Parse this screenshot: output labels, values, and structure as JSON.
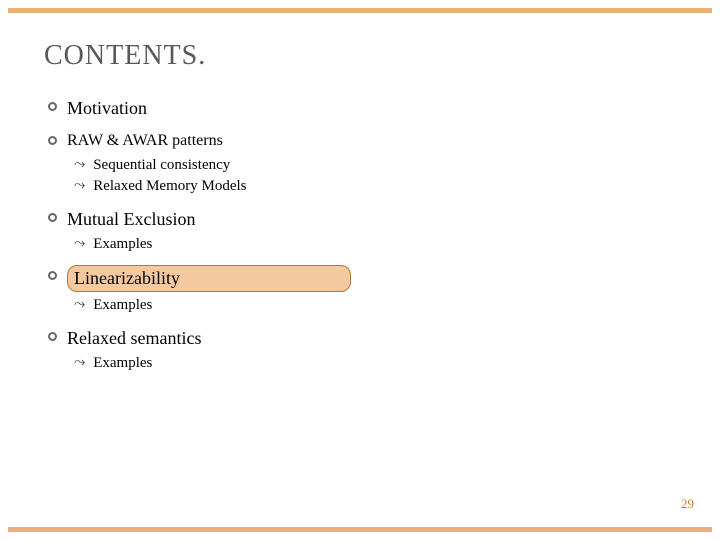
{
  "colors": {
    "border": "#e9b07a",
    "highlight_fill": "#f4c9a0",
    "highlight_border": "#b07a3a",
    "title_color": "#595959",
    "pagenum_color": "#c97d2e"
  },
  "title": "CONTENTS.",
  "items": [
    {
      "text": "Motivation",
      "size": "lg",
      "highlight": false,
      "subs": []
    },
    {
      "text": "RAW & AWAR patterns",
      "size": "sm",
      "highlight": false,
      "subs": [
        "Sequential consistency",
        "Relaxed Memory Models"
      ]
    },
    {
      "text": "Mutual Exclusion",
      "size": "lg",
      "highlight": false,
      "subs": [
        "Examples"
      ]
    },
    {
      "text": "Linearizability",
      "size": "lg",
      "highlight": true,
      "subs": [
        "Examples"
      ]
    },
    {
      "text": "Relaxed semantics",
      "size": "lg",
      "highlight": false,
      "subs": [
        "Examples"
      ]
    }
  ],
  "page_number": "29"
}
